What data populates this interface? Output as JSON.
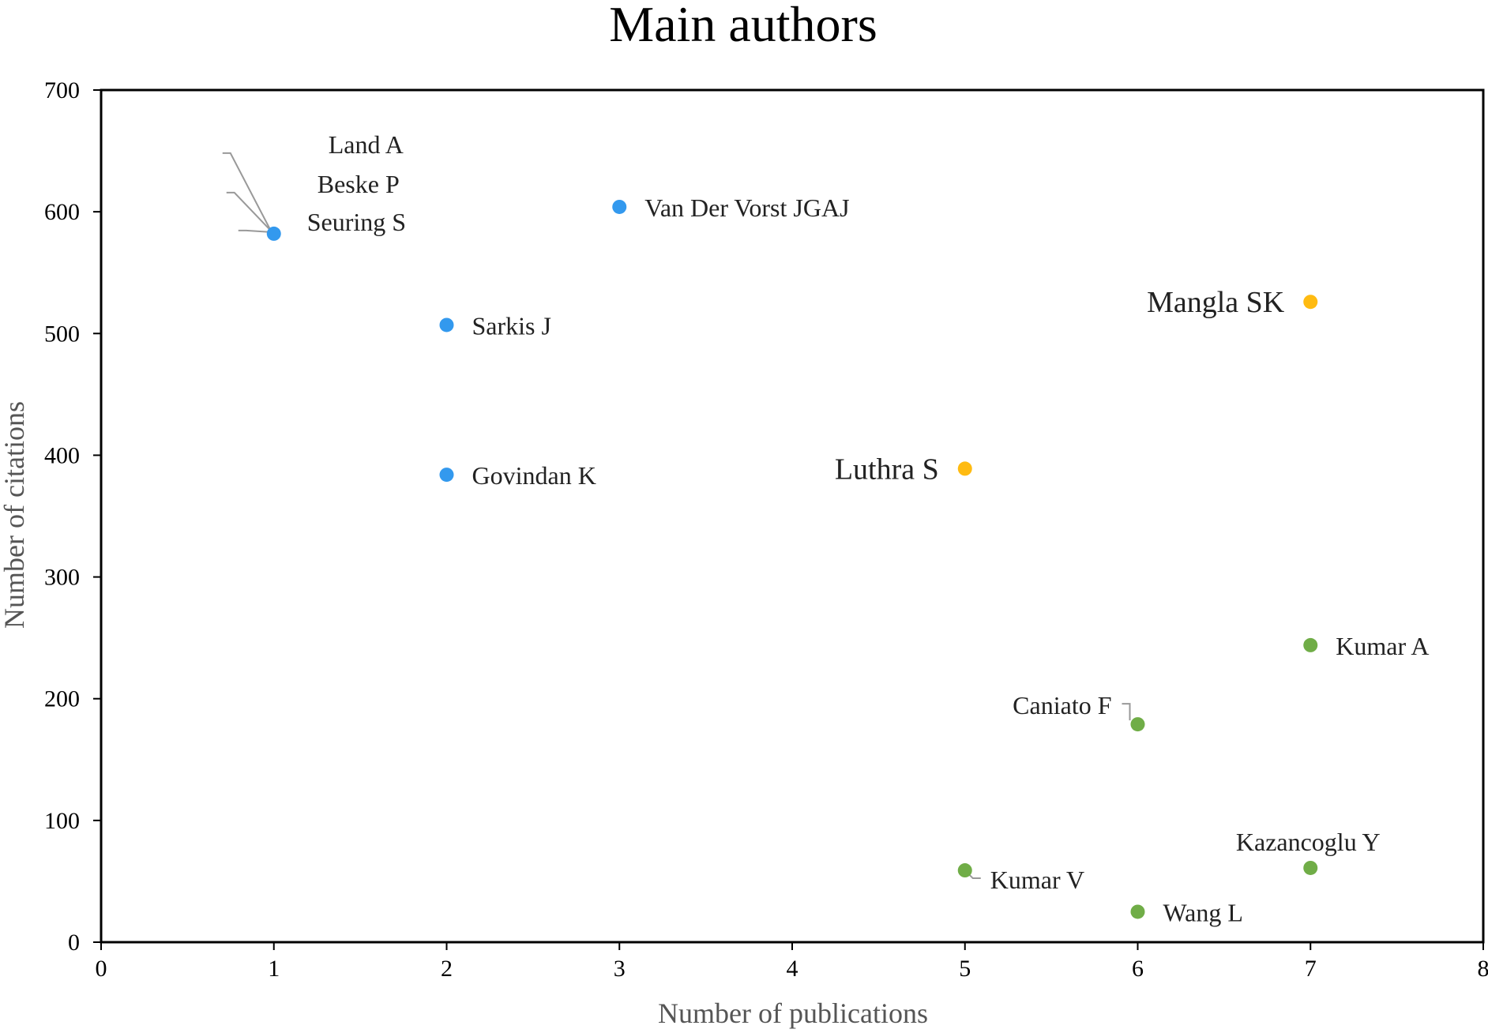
{
  "chart_data": {
    "type": "scatter",
    "title": "Main authors",
    "xlabel": "Number of publications",
    "ylabel": "Number of citations",
    "xlim": [
      0,
      8
    ],
    "ylim": [
      0,
      700
    ],
    "x_ticks": [
      "0",
      "1",
      "2",
      "3",
      "4",
      "5",
      "6",
      "7",
      "8"
    ],
    "y_ticks": [
      "0",
      "100",
      "200",
      "300",
      "400",
      "500",
      "600",
      "700"
    ],
    "grid": false,
    "legend": "none",
    "colors": {
      "blue": "#3399ee",
      "orange": "#ffbb11",
      "green": "#70ad47",
      "leader": "#999999"
    },
    "points": [
      {
        "label": "Land A",
        "x": 1,
        "y": 582,
        "color": "blue"
      },
      {
        "label": "Beske P",
        "x": 1,
        "y": 582,
        "color": "blue"
      },
      {
        "label": "Seuring S",
        "x": 1,
        "y": 582,
        "color": "blue"
      },
      {
        "label": "Van Der Vorst JGAJ",
        "x": 3,
        "y": 604,
        "color": "blue"
      },
      {
        "label": "Sarkis J",
        "x": 2,
        "y": 507,
        "color": "blue"
      },
      {
        "label": "Govindan K",
        "x": 2,
        "y": 384,
        "color": "blue"
      },
      {
        "label": "Mangla SK",
        "x": 7,
        "y": 526,
        "color": "orange"
      },
      {
        "label": "Luthra S",
        "x": 5,
        "y": 389,
        "color": "orange"
      },
      {
        "label": "Kumar A",
        "x": 7,
        "y": 244,
        "color": "green"
      },
      {
        "label": "Caniato F",
        "x": 6,
        "y": 179,
        "color": "green"
      },
      {
        "label": "Kazancoglu Y",
        "x": 7,
        "y": 61,
        "color": "green"
      },
      {
        "label": "Kumar V",
        "x": 5,
        "y": 59,
        "color": "green"
      },
      {
        "label": "Wang L",
        "x": 6,
        "y": 25,
        "color": "green"
      }
    ]
  }
}
